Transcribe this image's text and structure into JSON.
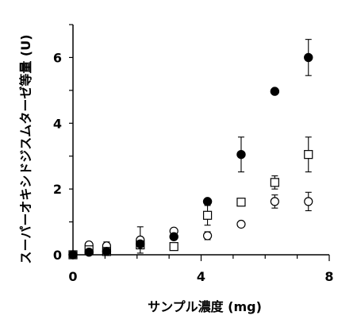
{
  "chart_data": {
    "type": "scatter",
    "xlabel": "サンプル濃度 (mg)",
    "ylabel": "スーパーオキシドジスムターゼ等量 (U)",
    "xlim": [
      0,
      8
    ],
    "ylim": [
      0,
      7
    ],
    "xticks": [
      "0",
      "4",
      "8"
    ],
    "yticks": [
      "0",
      "2",
      "4",
      "6"
    ],
    "grid": false,
    "legend": "none",
    "series": [
      {
        "marker": "filled-circle",
        "points": [
          {
            "x": 0,
            "y": 0.0,
            "err": 0.05
          },
          {
            "x": 0.5,
            "y": 0.08,
            "err": 0.05
          },
          {
            "x": 1.05,
            "y": 0.1,
            "err": 0.05
          },
          {
            "x": 2.1,
            "y": 0.33,
            "err": 0.08
          },
          {
            "x": 3.15,
            "y": 0.55,
            "err": 0.05
          },
          {
            "x": 4.2,
            "y": 1.62,
            "err": 0.05
          },
          {
            "x": 5.25,
            "y": 3.05,
            "err": 0.53
          },
          {
            "x": 6.3,
            "y": 4.97,
            "err": 0.0
          },
          {
            "x": 7.35,
            "y": 6.0,
            "err": 0.55
          }
        ]
      },
      {
        "marker": "open-square",
        "points": [
          {
            "x": 0,
            "y": 0.0,
            "err": 0.05
          },
          {
            "x": 0.5,
            "y": 0.15,
            "err": 0.05
          },
          {
            "x": 1.05,
            "y": 0.1,
            "err": 0.1
          },
          {
            "x": 2.1,
            "y": 0.3,
            "err": 0.05
          },
          {
            "x": 3.15,
            "y": 0.25,
            "err": 0.05
          },
          {
            "x": 4.2,
            "y": 1.2,
            "err": 0.3
          },
          {
            "x": 5.25,
            "y": 1.6,
            "err": 0.0
          },
          {
            "x": 6.3,
            "y": 2.2,
            "err": 0.2
          },
          {
            "x": 7.35,
            "y": 3.05,
            "err": 0.53
          }
        ]
      },
      {
        "marker": "open-circle",
        "points": [
          {
            "x": 0,
            "y": 0.0,
            "err": 0.05
          },
          {
            "x": 0.5,
            "y": 0.3,
            "err": 0.05
          },
          {
            "x": 1.05,
            "y": 0.27,
            "err": 0.12
          },
          {
            "x": 2.1,
            "y": 0.45,
            "err": 0.4
          },
          {
            "x": 3.15,
            "y": 0.72,
            "err": 0.05
          },
          {
            "x": 4.2,
            "y": 0.58,
            "err": 0.12
          },
          {
            "x": 5.25,
            "y": 0.93,
            "err": 0.0
          },
          {
            "x": 6.3,
            "y": 1.62,
            "err": 0.2
          },
          {
            "x": 7.35,
            "y": 1.62,
            "err": 0.28
          }
        ]
      }
    ]
  }
}
